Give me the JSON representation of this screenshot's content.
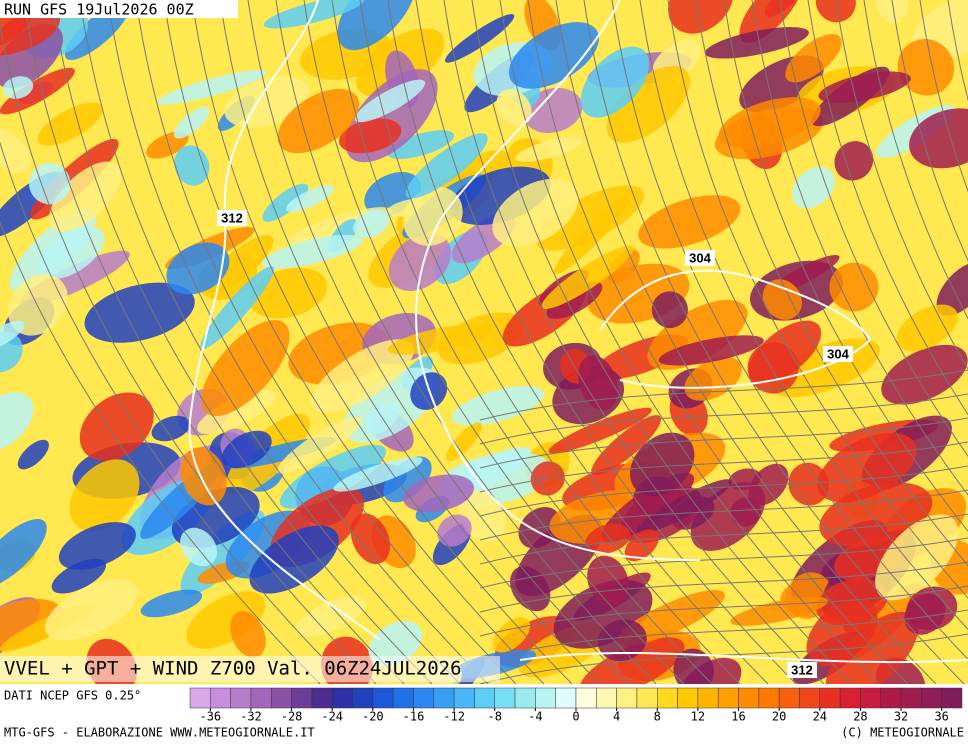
{
  "header": {
    "run": "RUN GFS 19Jul2026 00Z"
  },
  "map": {
    "title": "VVEL + GPT + WIND Z700 Val. 06Z24JUL2026",
    "contour_labels": [
      312,
      304,
      304,
      312
    ]
  },
  "colorbar": {
    "bounds": [
      -38,
      38
    ],
    "ticks": [
      -36,
      -32,
      -28,
      -24,
      -20,
      -16,
      -12,
      -8,
      -4,
      0,
      4,
      8,
      12,
      16,
      20,
      24,
      28,
      32,
      36
    ],
    "colors": [
      "#d8a8e8",
      "#c890dc",
      "#b87ccc",
      "#a466bc",
      "#8c50a8",
      "#6c3c98",
      "#4c2c90",
      "#3030a8",
      "#2040c0",
      "#1c58d8",
      "#2070e8",
      "#2c88f0",
      "#38a0f4",
      "#48b8f8",
      "#5ccef8",
      "#78e0f4",
      "#98ecf0",
      "#b8f4f4",
      "#e0fcfc",
      "#fffce0",
      "#fff8b0",
      "#fff080",
      "#ffe850",
      "#ffd820",
      "#ffc800",
      "#ffb400",
      "#ffa000",
      "#ff8c00",
      "#ff7800",
      "#f86010",
      "#f04818",
      "#e83020",
      "#d82030",
      "#c81c40",
      "#b01848",
      "#a01c50",
      "#901c58",
      "#801c5c"
    ]
  },
  "footer": {
    "source": "DATI NCEP GFS 0.25°",
    "left": "MTG-GFS - ELABORAZIONE WWW.METEOGIORNALE.IT",
    "right": "(C) METEOGIORNALE"
  }
}
